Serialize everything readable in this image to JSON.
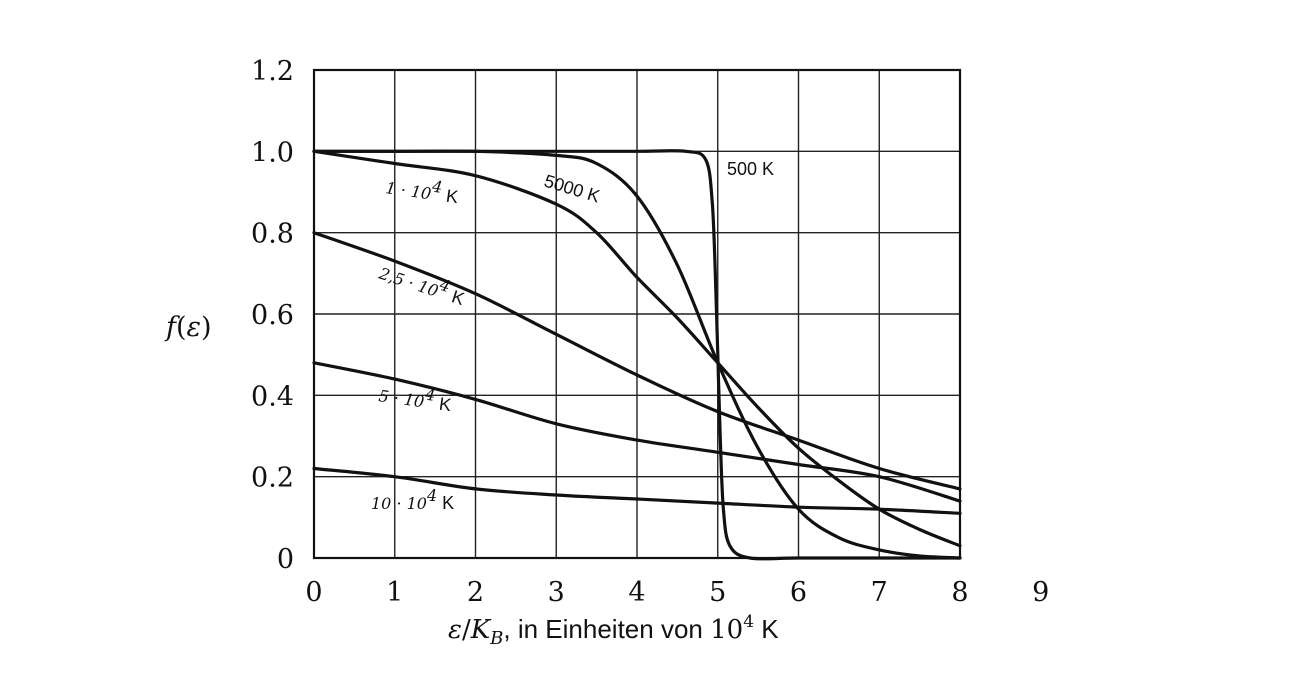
{
  "chart_data": {
    "type": "line",
    "title": "",
    "xlabel": "ε/K_B, in Einheiten von 10^4 K",
    "ylabel": "f(ε)",
    "xlim": [
      0,
      8
    ],
    "ylim": [
      0,
      1.2
    ],
    "x_ticks": [
      "0",
      "1",
      "2",
      "3",
      "4",
      "5",
      "6",
      "7",
      "8",
      "9"
    ],
    "y_ticks": [
      "0",
      "0.2",
      "0.4",
      "0.6",
      "0.8",
      "1.0",
      "1.2"
    ],
    "grid": true,
    "series": [
      {
        "name": "500 K",
        "x": [
          0,
          1,
          2,
          3,
          4,
          4.6,
          4.85,
          4.93,
          4.97,
          5.0,
          5.03,
          5.07,
          5.15,
          5.4,
          6,
          7,
          8
        ],
        "y": [
          1.0,
          1.0,
          1.0,
          1.0,
          1.0,
          1.0,
          0.98,
          0.88,
          0.7,
          0.5,
          0.3,
          0.12,
          0.03,
          0.0,
          0.0,
          0.0,
          0.0
        ]
      },
      {
        "name": "5000 K",
        "x": [
          0,
          1,
          2,
          3,
          3.5,
          4,
          4.5,
          5,
          5.5,
          6,
          6.5,
          7,
          7.5,
          8
        ],
        "y": [
          1.0,
          1.0,
          1.0,
          0.99,
          0.97,
          0.89,
          0.72,
          0.48,
          0.27,
          0.12,
          0.05,
          0.02,
          0.005,
          0.0
        ]
      },
      {
        "name": "1 · 10^4 K",
        "x": [
          0,
          1,
          2,
          3,
          3.5,
          4,
          4.5,
          5,
          5.5,
          6,
          6.5,
          7,
          7.5,
          8
        ],
        "y": [
          1.0,
          0.97,
          0.94,
          0.87,
          0.8,
          0.69,
          0.59,
          0.48,
          0.37,
          0.27,
          0.19,
          0.12,
          0.07,
          0.03
        ]
      },
      {
        "name": "2,5 · 10^4 K",
        "x": [
          0,
          1,
          2,
          3,
          4,
          5,
          6,
          7,
          8
        ],
        "y": [
          0.8,
          0.73,
          0.65,
          0.55,
          0.45,
          0.36,
          0.29,
          0.22,
          0.17
        ]
      },
      {
        "name": "5 · 10^4 K",
        "x": [
          0,
          1,
          2,
          3,
          4,
          5,
          6,
          7,
          8
        ],
        "y": [
          0.48,
          0.44,
          0.39,
          0.33,
          0.29,
          0.26,
          0.23,
          0.2,
          0.14
        ]
      },
      {
        "name": "10 · 10^4 K",
        "x": [
          0,
          1,
          2,
          3,
          4,
          5,
          6,
          7,
          8
        ],
        "y": [
          0.22,
          0.2,
          0.17,
          0.155,
          0.145,
          0.135,
          0.125,
          0.12,
          0.11
        ]
      }
    ]
  },
  "labels": {
    "ylabel_f": "f",
    "ylabel_open": "(",
    "ylabel_eps": "ε",
    "ylabel_close": ")",
    "xlabel_eps": "ε",
    "xlabel_slash": "/",
    "xlabel_k": "K",
    "xlabel_b": "B",
    "xlabel_text": ", in Einheiten von ",
    "xlabel_ten": "10",
    "xlabel_exp": "4",
    "xlabel_unit": " K",
    "c500": "500 K",
    "c5000": "5000 K",
    "c1e4_pre": "1 · 10",
    "c1e4_exp": "4",
    "c1e4_unit": " K",
    "c25e4_pre": "2,5 · 10",
    "c25e4_exp": "4",
    "c25e4_unit": " K",
    "c5e4_pre": "5 · 10",
    "c5e4_exp": "4",
    "c5e4_unit": " K",
    "c10e4_pre": "10 · 10",
    "c10e4_exp": "4",
    "c10e4_unit": " K"
  }
}
